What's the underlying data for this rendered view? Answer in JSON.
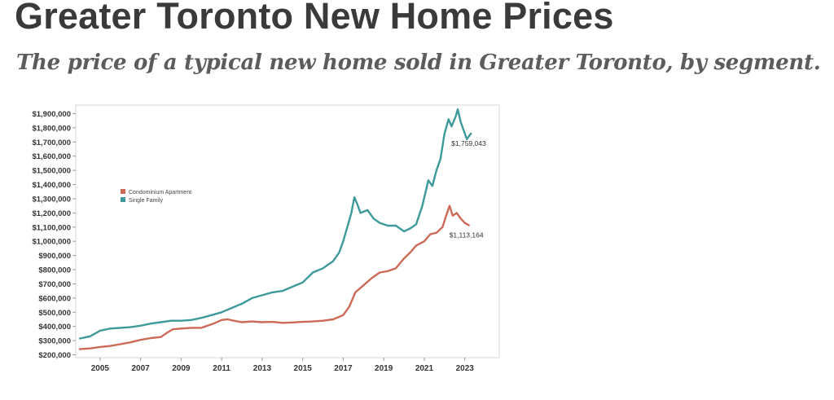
{
  "title": "Greater Toronto New Home Prices",
  "subtitle": "The price of a typical new home sold in Greater Toronto, by segment.",
  "chart_data": {
    "type": "line",
    "title": "",
    "xlabel": "",
    "ylabel": "",
    "xlim": [
      2003.8,
      2024.7
    ],
    "ylim": [
      180000,
      1960000
    ],
    "x_ticks": [
      "2005",
      "2007",
      "2009",
      "2011",
      "2013",
      "2015",
      "2017",
      "2019",
      "2021",
      "2023"
    ],
    "y_ticks": [
      {
        "value": 200000,
        "label": "$200,000"
      },
      {
        "value": 300000,
        "label": "$300,000"
      },
      {
        "value": 400000,
        "label": "$400,000"
      },
      {
        "value": 500000,
        "label": "$500,000"
      },
      {
        "value": 600000,
        "label": "$600,000"
      },
      {
        "value": 700000,
        "label": "$700,000"
      },
      {
        "value": 800000,
        "label": "$800,000"
      },
      {
        "value": 900000,
        "label": "$900,000"
      },
      {
        "value": 1000000,
        "label": "$1,000,000"
      },
      {
        "value": 1100000,
        "label": "$1,100,000"
      },
      {
        "value": 1200000,
        "label": "$1,200,000"
      },
      {
        "value": 1300000,
        "label": "$1,300,000"
      },
      {
        "value": 1400000,
        "label": "$1,400,000"
      },
      {
        "value": 1500000,
        "label": "$1,500,000"
      },
      {
        "value": 1600000,
        "label": "$1,600,000"
      },
      {
        "value": 1700000,
        "label": "$1,700,000"
      },
      {
        "value": 1800000,
        "label": "$1,800,000"
      },
      {
        "value": 1900000,
        "label": "$1,900,000"
      }
    ],
    "grid": false,
    "legend_position": "left",
    "series": [
      {
        "name": "Condominium Apartment",
        "color": "#cd6a57",
        "end_label": "$1,113,164",
        "points": [
          [
            2004.0,
            240000
          ],
          [
            2004.5,
            245000
          ],
          [
            2005.0,
            255000
          ],
          [
            2005.5,
            262000
          ],
          [
            2006.0,
            275000
          ],
          [
            2006.5,
            288000
          ],
          [
            2007.0,
            305000
          ],
          [
            2007.5,
            318000
          ],
          [
            2008.0,
            325000
          ],
          [
            2008.3,
            355000
          ],
          [
            2008.6,
            380000
          ],
          [
            2009.0,
            385000
          ],
          [
            2009.5,
            390000
          ],
          [
            2010.0,
            390000
          ],
          [
            2010.3,
            405000
          ],
          [
            2010.6,
            420000
          ],
          [
            2011.0,
            445000
          ],
          [
            2011.3,
            450000
          ],
          [
            2011.6,
            440000
          ],
          [
            2012.0,
            430000
          ],
          [
            2012.5,
            435000
          ],
          [
            2013.0,
            430000
          ],
          [
            2013.5,
            432000
          ],
          [
            2014.0,
            425000
          ],
          [
            2014.5,
            428000
          ],
          [
            2015.0,
            432000
          ],
          [
            2015.5,
            435000
          ],
          [
            2016.0,
            440000
          ],
          [
            2016.5,
            450000
          ],
          [
            2017.0,
            480000
          ],
          [
            2017.3,
            540000
          ],
          [
            2017.6,
            640000
          ],
          [
            2018.0,
            690000
          ],
          [
            2018.4,
            740000
          ],
          [
            2018.8,
            780000
          ],
          [
            2019.2,
            790000
          ],
          [
            2019.6,
            810000
          ],
          [
            2020.0,
            880000
          ],
          [
            2020.3,
            920000
          ],
          [
            2020.6,
            970000
          ],
          [
            2021.0,
            1000000
          ],
          [
            2021.3,
            1050000
          ],
          [
            2021.6,
            1060000
          ],
          [
            2021.9,
            1100000
          ],
          [
            2022.1,
            1190000
          ],
          [
            2022.25,
            1250000
          ],
          [
            2022.4,
            1180000
          ],
          [
            2022.6,
            1200000
          ],
          [
            2022.8,
            1160000
          ],
          [
            2023.0,
            1130000
          ],
          [
            2023.2,
            1113164
          ]
        ]
      },
      {
        "name": "Single Family",
        "color": "#3e9a9a",
        "end_label": "$1,759,043",
        "points": [
          [
            2004.0,
            315000
          ],
          [
            2004.5,
            330000
          ],
          [
            2005.0,
            370000
          ],
          [
            2005.5,
            385000
          ],
          [
            2006.0,
            390000
          ],
          [
            2006.5,
            395000
          ],
          [
            2007.0,
            405000
          ],
          [
            2007.5,
            420000
          ],
          [
            2008.0,
            430000
          ],
          [
            2008.5,
            440000
          ],
          [
            2009.0,
            440000
          ],
          [
            2009.5,
            445000
          ],
          [
            2010.0,
            460000
          ],
          [
            2010.5,
            480000
          ],
          [
            2011.0,
            500000
          ],
          [
            2011.5,
            530000
          ],
          [
            2012.0,
            560000
          ],
          [
            2012.5,
            600000
          ],
          [
            2013.0,
            620000
          ],
          [
            2013.5,
            640000
          ],
          [
            2014.0,
            650000
          ],
          [
            2014.5,
            680000
          ],
          [
            2015.0,
            710000
          ],
          [
            2015.5,
            780000
          ],
          [
            2016.0,
            810000
          ],
          [
            2016.5,
            860000
          ],
          [
            2016.8,
            920000
          ],
          [
            2017.0,
            1000000
          ],
          [
            2017.2,
            1100000
          ],
          [
            2017.4,
            1200000
          ],
          [
            2017.55,
            1310000
          ],
          [
            2017.7,
            1260000
          ],
          [
            2017.85,
            1200000
          ],
          [
            2018.2,
            1220000
          ],
          [
            2018.5,
            1160000
          ],
          [
            2018.8,
            1130000
          ],
          [
            2019.2,
            1110000
          ],
          [
            2019.6,
            1110000
          ],
          [
            2020.0,
            1070000
          ],
          [
            2020.3,
            1090000
          ],
          [
            2020.6,
            1120000
          ],
          [
            2020.9,
            1250000
          ],
          [
            2021.2,
            1430000
          ],
          [
            2021.4,
            1390000
          ],
          [
            2021.6,
            1500000
          ],
          [
            2021.8,
            1580000
          ],
          [
            2022.0,
            1760000
          ],
          [
            2022.2,
            1860000
          ],
          [
            2022.35,
            1810000
          ],
          [
            2022.55,
            1880000
          ],
          [
            2022.65,
            1930000
          ],
          [
            2022.8,
            1840000
          ],
          [
            2023.0,
            1760000
          ],
          [
            2023.1,
            1720000
          ],
          [
            2023.3,
            1759043
          ]
        ]
      }
    ]
  }
}
